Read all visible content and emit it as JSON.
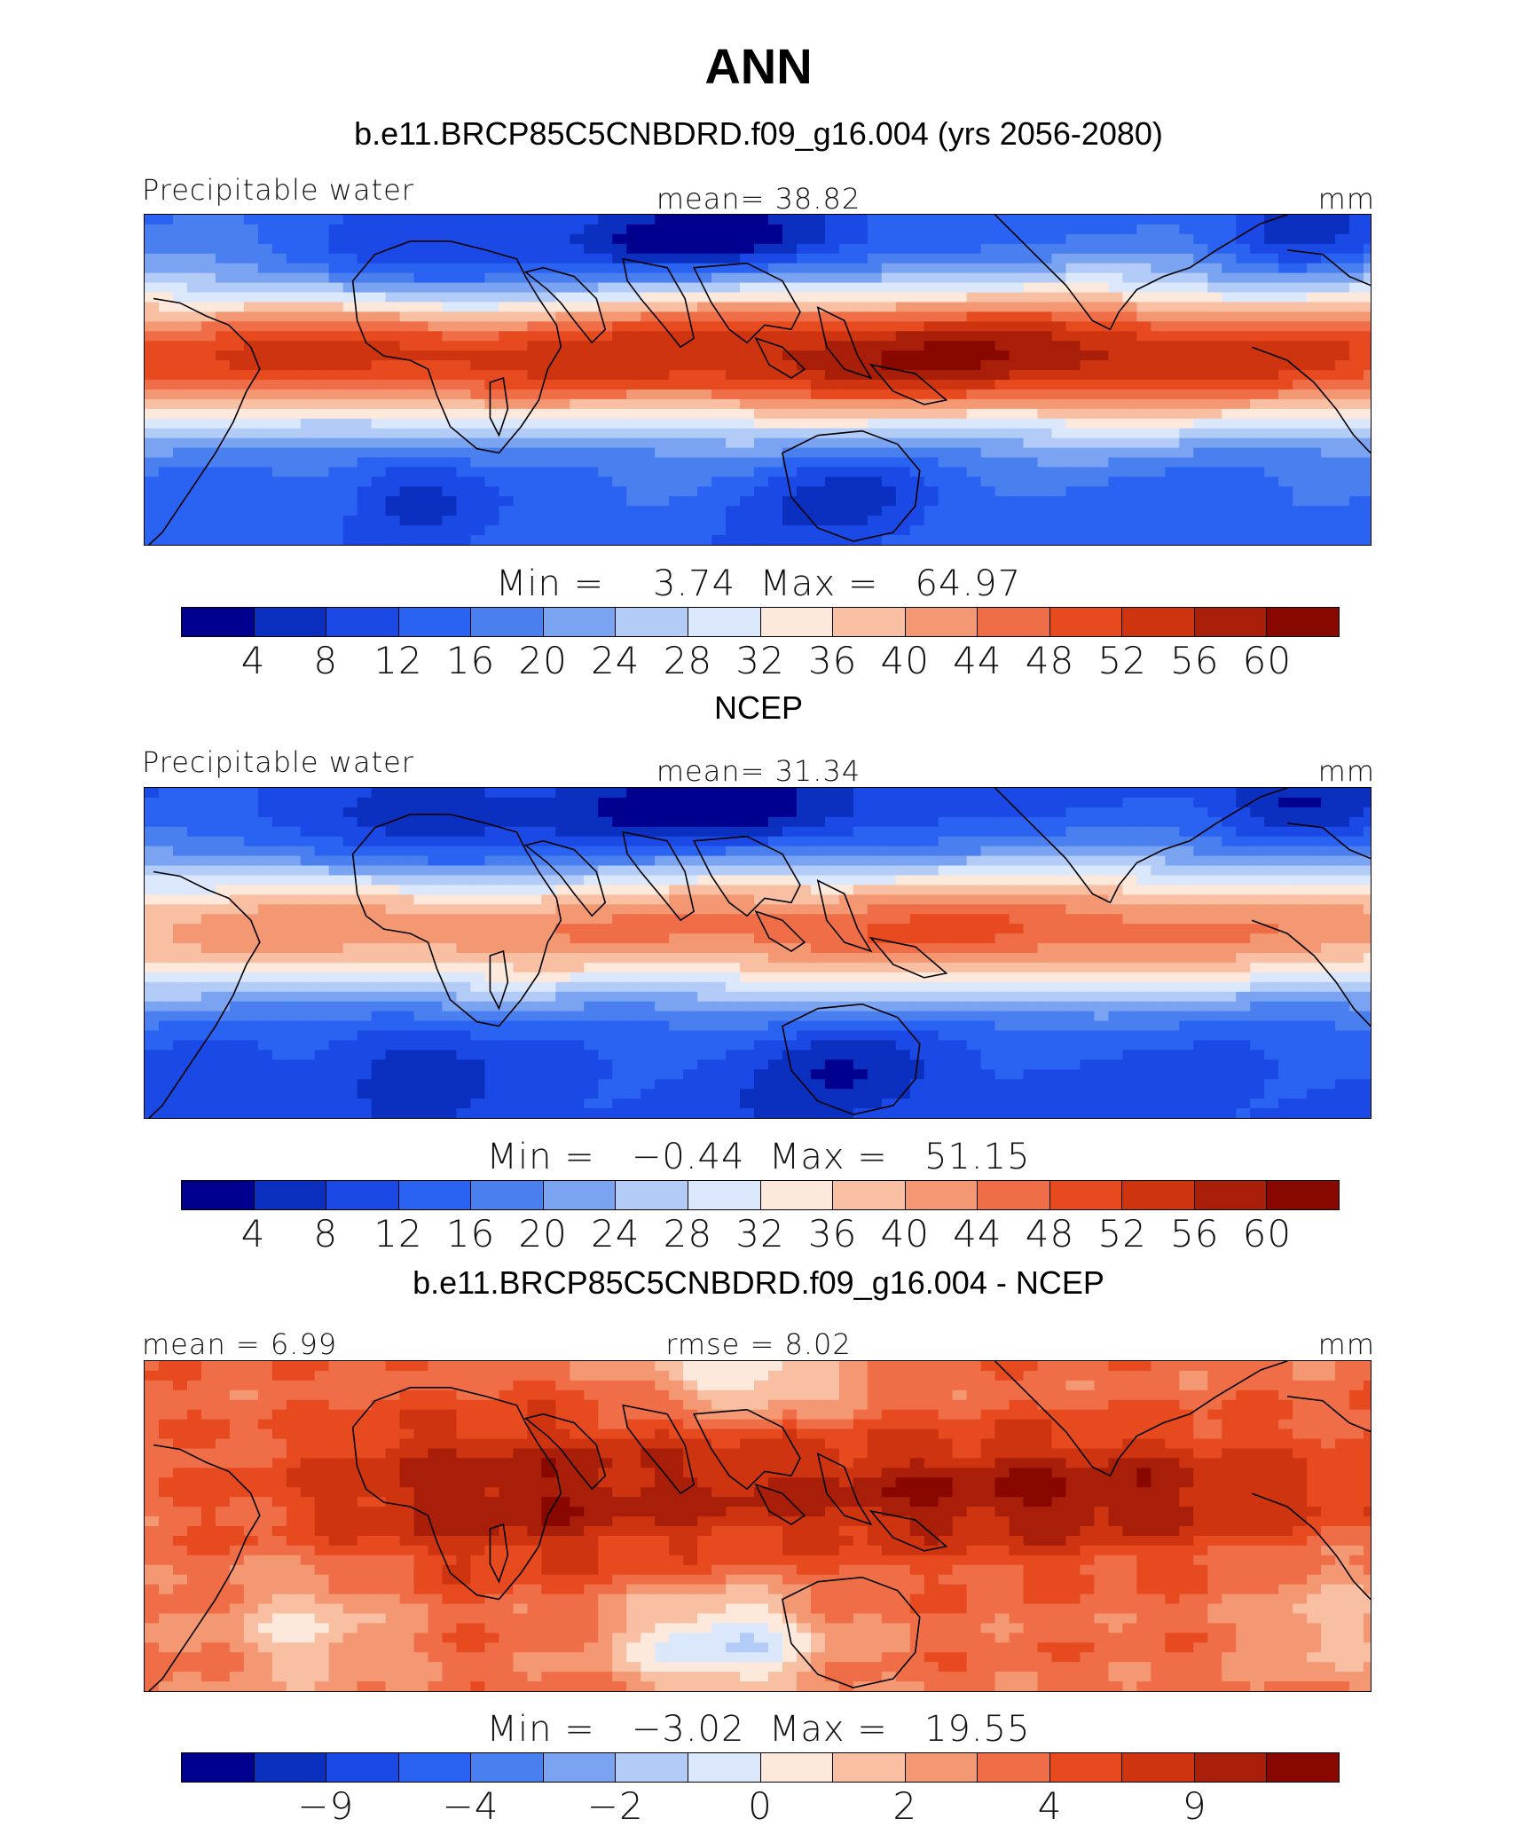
{
  "figure": {
    "season_title": "ANN"
  },
  "palette": [
    "#00008f",
    "#0b2fbf",
    "#1a49e6",
    "#2a62f2",
    "#4a7ff0",
    "#7aa4f2",
    "#b2ccf7",
    "#dbe8fb",
    "#fde9dc",
    "#f8bfa3",
    "#f49873",
    "#ef6e47",
    "#e74a1f",
    "#cf3410",
    "#a81e08",
    "#880800"
  ],
  "panels": [
    {
      "title": "b.e11.BRCP85C5CNBDRD.f09_g16.004 (yrs 2056-2080)",
      "left_label": "Precipitable water",
      "center_label": "mean=   38.82",
      "units": "mm",
      "minmax": "Min =    3.74  Max =   64.97",
      "colorbar_ticks": [
        "4",
        "8",
        "12",
        "16",
        "20",
        "24",
        "28",
        "32",
        "36",
        "40",
        "44",
        "48",
        "52",
        "56",
        "60"
      ],
      "field_level": 10
    },
    {
      "title": "NCEP",
      "left_label": "Precipitable water",
      "center_label": "mean=   31.34",
      "units": "mm",
      "minmax": "Min =   −0.44  Max =   51.15",
      "colorbar_ticks": [
        "4",
        "8",
        "12",
        "16",
        "20",
        "24",
        "28",
        "32",
        "36",
        "40",
        "44",
        "48",
        "52",
        "56",
        "60"
      ],
      "field_level": 8
    },
    {
      "title": "b.e11.BRCP85C5CNBDRD.f09_g16.004 - NCEP",
      "left_label": "mean =    6.99",
      "center_label": "rmse =    8.02",
      "units": "mm",
      "minmax": "Min =   −3.02  Max =   19.55",
      "colorbar_ticks": [
        "−9",
        "−4",
        "−2",
        "0",
        "2",
        "4",
        "9"
      ],
      "field_level": 12
    }
  ]
}
